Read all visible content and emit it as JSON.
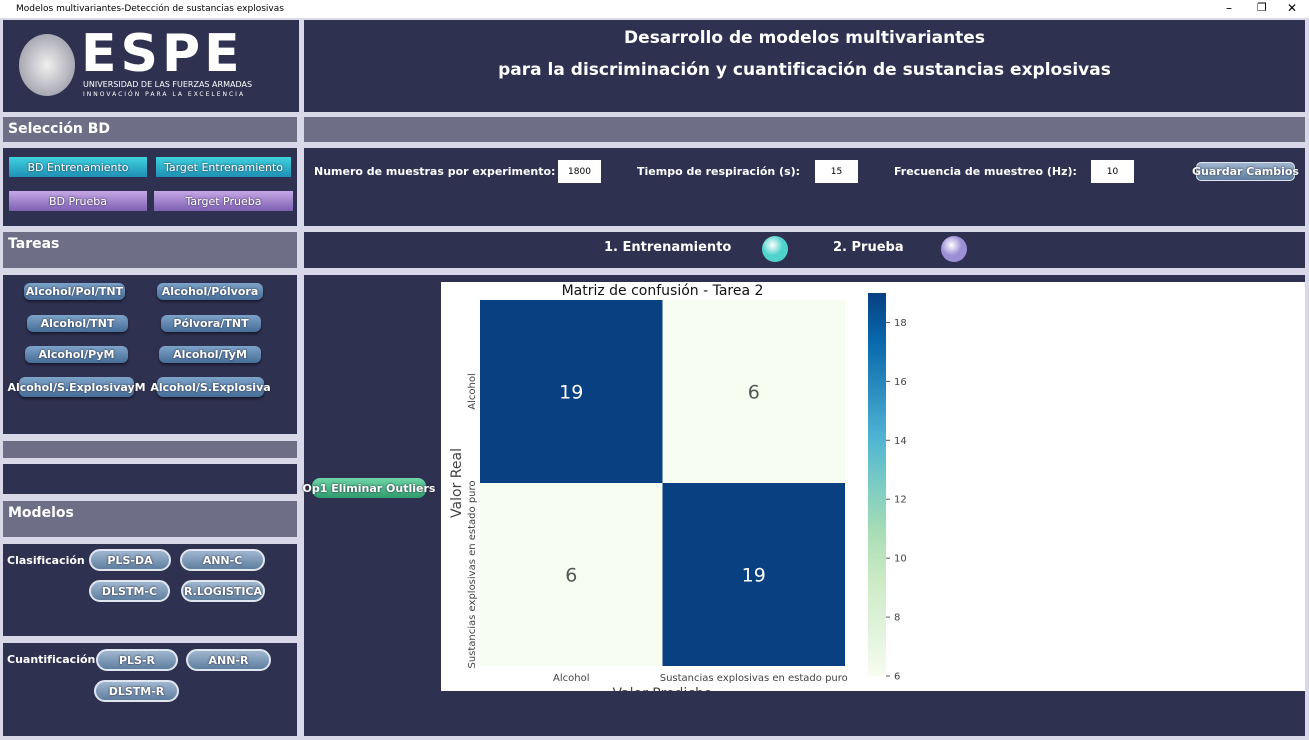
{
  "window": {
    "title": "Modelos multivariantes-Detección de sustancias explosivas"
  },
  "logo": {
    "name": "ESPE",
    "line1": "UNIVERSIDAD DE LAS FUERZAS ARMADAS",
    "line2": "INNOVACIÓN PARA LA EXCELENCIA"
  },
  "header": {
    "title_line1": "Desarrollo de modelos multivariantes",
    "title_line2": "para la discriminación y cuantificación de sustancias explosivas"
  },
  "sections": {
    "database": "Selección BD",
    "tasks": "Tareas",
    "models": "Modelos"
  },
  "database_buttons": [
    "BD Entrenamiento",
    "Target Entrenamiento",
    "BD Prueba",
    "Target Prueba"
  ],
  "parameters": [
    {
      "label": "Numero de muestras por experimento:",
      "value": 1800
    },
    {
      "label": "Tiempo de respiración (s):",
      "value": 15
    },
    {
      "label": "Frecuencia de muestreo (Hz):",
      "value": 10
    }
  ],
  "save_button": "Guardar Cambios",
  "steps": [
    {
      "label": "1. Entrenamiento",
      "color": "#4fd3cc"
    },
    {
      "label": "2. Prueba",
      "color": "#9d8fd6"
    }
  ],
  "task_buttons": [
    "Alcohol/Pol/TNT",
    "Alcohol/Pólvora",
    "Alcohol/TNT",
    "Pólvora/TNT",
    "Alcohol/PyM",
    "Alcohol/TyM",
    "Alcohol/S.ExplosivayM",
    "Alcohol/S.Explosiva"
  ],
  "outlier_button": "Op1 Eliminar Outliers",
  "classification": {
    "label": "Clasificación",
    "buttons": [
      "PLS-DA",
      "ANN-C",
      "DLSTM-C",
      "R.LOGISTICA"
    ]
  },
  "quantification": {
    "label": "Cuantificación",
    "buttons": [
      "PLS-R",
      "ANN-R",
      "DLSTM-R"
    ]
  },
  "chart_data": {
    "type": "heatmap",
    "title": "Matriz de confusión - Tarea 2",
    "x_label": "Valor Predicho",
    "y_label": "Valor Real",
    "x_categories": [
      "Alcohol",
      "Sustancias explosivas en estado puro"
    ],
    "y_categories": [
      "Alcohol",
      "Sustancias explosivas en estado puro"
    ],
    "values": [
      [
        19,
        6
      ],
      [
        6,
        19
      ]
    ],
    "colormap": "GnBu",
    "clim": [
      6,
      19
    ],
    "cticks": [
      6,
      8,
      10,
      12,
      14,
      16,
      18
    ]
  }
}
